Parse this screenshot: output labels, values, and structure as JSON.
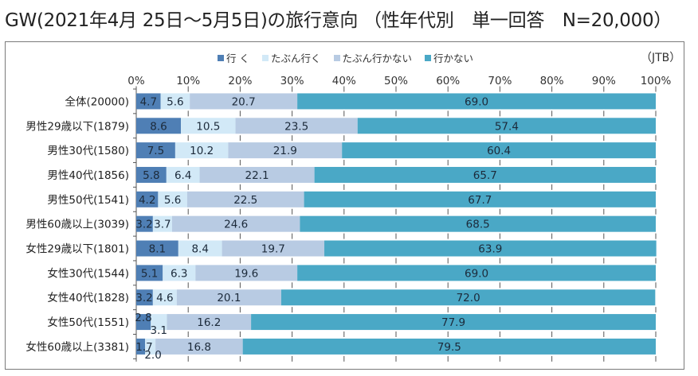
{
  "title": "GW(2021年4月 25日～5月5日)の旅行意向 （性年代別　単一回答　N=20,000）",
  "source": "（JTB）",
  "colors": {
    "行く": "#4f7fb5",
    "たぶん行く": "#d2e9f7",
    "たぶん行かない": "#b8cbe3",
    "行かない": "#4aa8c6"
  },
  "chart_data": {
    "type": "bar",
    "orientation": "horizontal",
    "stacked": "percent",
    "title": "GW(2021年4月 25日～5月5日)の旅行意向 （性年代別　単一回答　N=20,000）",
    "xlabel": "",
    "ylabel": "",
    "xlim": [
      0,
      100
    ],
    "x_ticks": [
      "0%",
      "10%",
      "20%",
      "30%",
      "40%",
      "50%",
      "60%",
      "70%",
      "80%",
      "90%",
      "100%"
    ],
    "legend_position": "top",
    "grid": false,
    "categories": [
      "全体(20000)",
      "男性29歳以下(1879)",
      "男性30代(1580)",
      "男性40代(1856)",
      "男性50代(1541)",
      "男性60歳以上(3039)",
      "女性29歳以下(1801)",
      "女性30代(1544)",
      "女性40代(1828)",
      "女性50代(1551)",
      "女性60歳以上(3381)"
    ],
    "series": [
      {
        "name": "行く",
        "legend_label": "行 く",
        "values": [
          4.7,
          8.6,
          7.5,
          5.8,
          4.2,
          3.2,
          8.1,
          5.1,
          3.2,
          2.8,
          1.7
        ],
        "labels": [
          "4.7",
          "8.6",
          "7.5",
          "5.8",
          "4.2",
          "3.2",
          "8.1",
          "5.1",
          "3.2",
          "2.8",
          "1.7"
        ]
      },
      {
        "name": "たぶん行く",
        "legend_label": "たぶん行く",
        "values": [
          5.6,
          10.5,
          10.2,
          6.4,
          5.6,
          3.7,
          8.4,
          6.3,
          4.6,
          3.1,
          2.0
        ],
        "labels": [
          "5.6",
          "10.5",
          "10.2",
          "6.4",
          "5.6",
          "3.7",
          "8.4",
          "6.3",
          "4.6",
          "3.1",
          "2.0"
        ]
      },
      {
        "name": "たぶん行かない",
        "legend_label": "たぶん行かない",
        "values": [
          20.7,
          23.5,
          21.9,
          22.1,
          22.5,
          24.6,
          19.7,
          19.6,
          20.1,
          16.2,
          16.8
        ],
        "labels": [
          "20.7",
          "23.5",
          "21.9",
          "22.1",
          "22.5",
          "24.6",
          "19.7",
          "19.6",
          "20.1",
          "16.2",
          "16.8"
        ]
      },
      {
        "name": "行かない",
        "legend_label": "行かない",
        "values": [
          69.0,
          57.4,
          60.4,
          65.7,
          67.7,
          68.5,
          63.9,
          69.0,
          72.0,
          77.9,
          79.5
        ],
        "labels": [
          "69.0",
          "57.4",
          "60.4",
          "65.7",
          "67.7",
          "68.5",
          "63.9",
          "69.0",
          "72.0",
          "77.9",
          "79.5"
        ]
      }
    ]
  }
}
